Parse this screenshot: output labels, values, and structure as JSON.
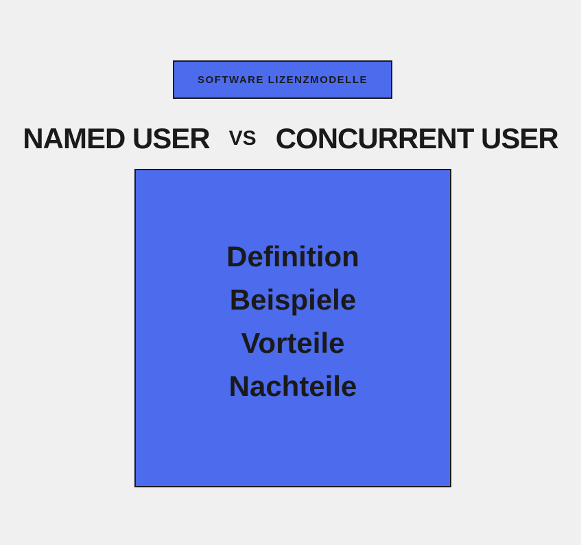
{
  "header": {
    "badge_label": "SOFTWARE LIZENZMODELLE"
  },
  "comparison": {
    "left_label": "NAMED USER",
    "vs_label": "VS",
    "right_label": "CONCURRENT USER"
  },
  "content": {
    "items": [
      "Definition",
      "Beispiele",
      "Vorteile",
      "Nachteile"
    ]
  },
  "styling": {
    "background_color": "#f0f0f0",
    "accent_color": "#4c6bed",
    "border_color": "#1a1a1a",
    "text_color": "#1a1a1a",
    "badge_fontsize": 15,
    "heading_fontsize": 42,
    "vs_fontsize": 30,
    "content_fontsize": 42
  }
}
